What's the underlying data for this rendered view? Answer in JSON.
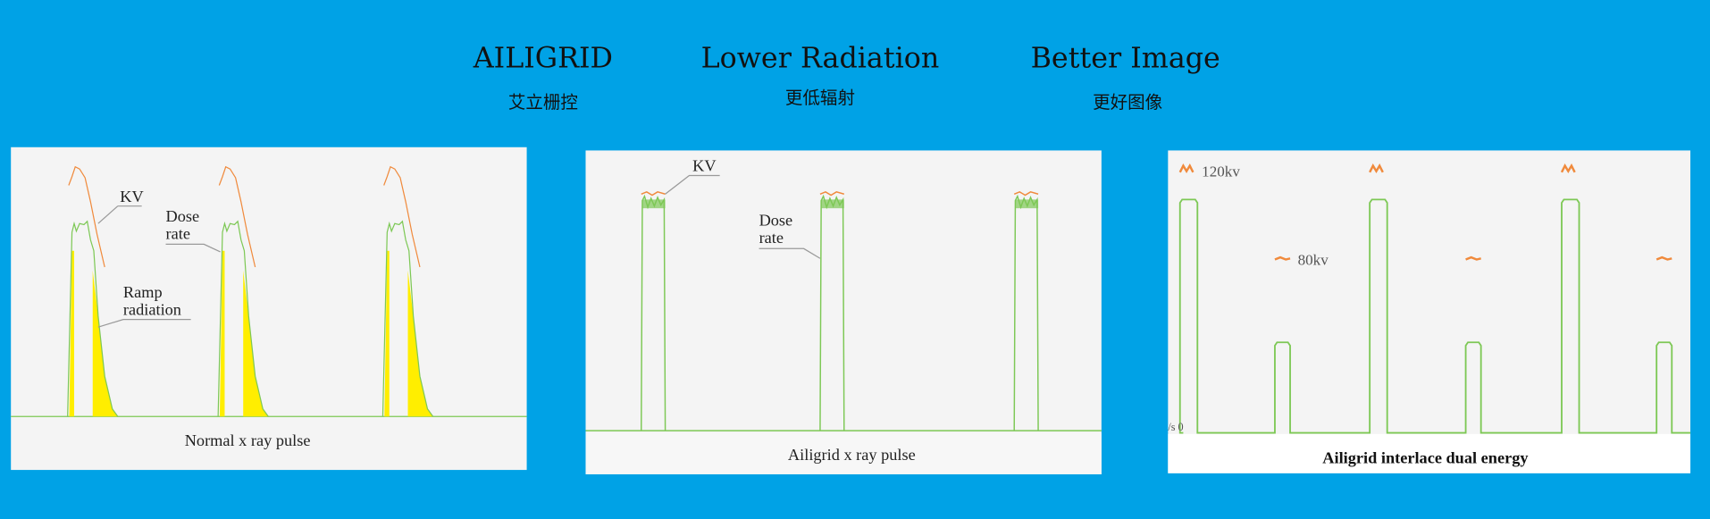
{
  "header": {
    "items": [
      {
        "title": "AILIGRID",
        "subtitle": "艾立栅控"
      },
      {
        "title": "Lower Radiation",
        "subtitle": "更低辐射"
      },
      {
        "title": "Better Image",
        "subtitle": "更好图像"
      }
    ]
  },
  "panels": [
    {
      "caption": "Normal x ray pulse",
      "labels": {
        "kv": "KV",
        "dose_1": "Dose",
        "dose_2": "rate",
        "ramp_1": "Ramp",
        "ramp_2": "radiation"
      }
    },
    {
      "caption": "Ailigrid x ray pulse",
      "labels": {
        "kv": "KV",
        "dose_1": "Dose",
        "dose_2": "rate"
      }
    },
    {
      "caption": "Ailigrid interlace dual energy",
      "labels": {
        "high": "120kv",
        "low": "80kv",
        "axis": "/s  0"
      }
    }
  ],
  "colors": {
    "background": "#00a2e6",
    "panel": "#f4f4f4",
    "dose": "#7dc855",
    "kv": "#f08a3c",
    "ramp": "#ffee00"
  }
}
